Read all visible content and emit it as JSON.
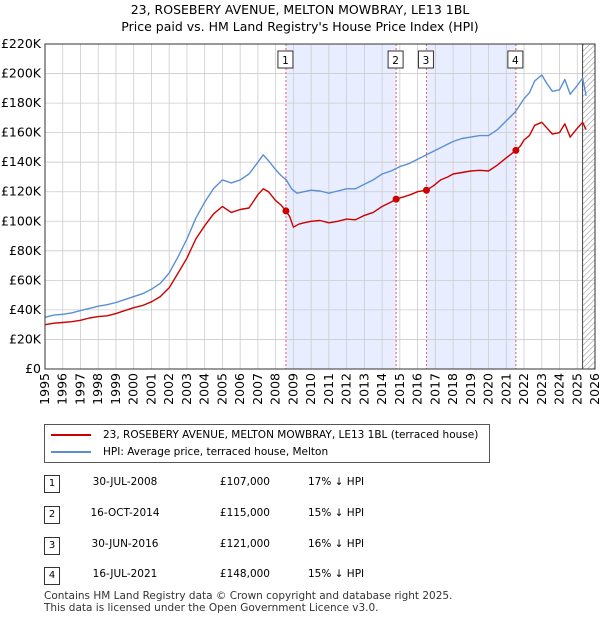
{
  "title_line1": "23, ROSEBERY AVENUE, MELTON MOWBRAY, LE13 1BL",
  "title_line2": "Price paid vs. HM Land Registry's House Price Index (HPI)",
  "colors": {
    "property": "#cc0000",
    "hpi": "#5b8fd4",
    "shade": "#e8eeff",
    "marker_line": "#e06060",
    "grid": "#cccccc",
    "future_hatch": "#999999"
  },
  "chart_data": {
    "type": "line",
    "xlim": [
      1995,
      2026
    ],
    "ylim": [
      0,
      220000
    ],
    "x_ticks": [
      1995,
      1996,
      1997,
      1998,
      1999,
      2000,
      2001,
      2002,
      2003,
      2004,
      2005,
      2006,
      2007,
      2008,
      2009,
      2010,
      2011,
      2012,
      2013,
      2014,
      2015,
      2016,
      2017,
      2018,
      2019,
      2020,
      2021,
      2022,
      2023,
      2024,
      2025,
      2026
    ],
    "y_ticks": [
      {
        "value": 0,
        "label": "£0"
      },
      {
        "value": 20000,
        "label": "£20K"
      },
      {
        "value": 40000,
        "label": "£40K"
      },
      {
        "value": 60000,
        "label": "£60K"
      },
      {
        "value": 80000,
        "label": "£80K"
      },
      {
        "value": 100000,
        "label": "£100K"
      },
      {
        "value": 120000,
        "label": "£120K"
      },
      {
        "value": 140000,
        "label": "£140K"
      },
      {
        "value": 160000,
        "label": "£160K"
      },
      {
        "value": 180000,
        "label": "£180K"
      },
      {
        "value": 200000,
        "label": "£200K"
      },
      {
        "value": 220000,
        "label": "£220K"
      }
    ],
    "future_from": 2025.3,
    "shaded_ranges": [
      [
        2008.58,
        2014.79
      ],
      [
        2016.5,
        2021.54
      ]
    ],
    "series": [
      {
        "name": "23, ROSEBERY AVENUE, MELTON MOWBRAY, LE13 1BL (terraced house)",
        "color": "#cc0000",
        "x": [
          1995.0,
          1995.5,
          1996.0,
          1996.5,
          1997.0,
          1997.5,
          1998.0,
          1998.5,
          1999.0,
          1999.5,
          2000.0,
          2000.5,
          2001.0,
          2001.5,
          2002.0,
          2002.5,
          2003.0,
          2003.5,
          2004.0,
          2004.5,
          2005.0,
          2005.5,
          2006.0,
          2006.5,
          2007.0,
          2007.3,
          2007.6,
          2008.0,
          2008.3,
          2008.58,
          2008.8,
          2009.0,
          2009.3,
          2009.6,
          2010.0,
          2010.5,
          2011.0,
          2011.5,
          2012.0,
          2012.5,
          2013.0,
          2013.5,
          2014.0,
          2014.5,
          2014.79,
          2015.2,
          2015.6,
          2016.0,
          2016.5,
          2016.9,
          2017.3,
          2017.7,
          2018.0,
          2018.5,
          2019.0,
          2019.5,
          2020.0,
          2020.5,
          2021.0,
          2021.54,
          2021.8,
          2022.0,
          2022.3,
          2022.6,
          2023.0,
          2023.3,
          2023.6,
          2024.0,
          2024.3,
          2024.6,
          2025.0,
          2025.3,
          2025.5
        ],
        "values": [
          30000,
          31000,
          31500,
          32000,
          33000,
          34500,
          35500,
          36000,
          37500,
          39500,
          41500,
          43000,
          45500,
          49000,
          55000,
          65000,
          75000,
          88000,
          97000,
          105000,
          110000,
          106000,
          108000,
          109000,
          118000,
          122000,
          120000,
          114000,
          111000,
          107000,
          103000,
          96000,
          98000,
          99000,
          100000,
          100500,
          99000,
          100000,
          101500,
          101000,
          104000,
          106000,
          110000,
          113000,
          115000,
          116500,
          118000,
          120000,
          121000,
          124000,
          128000,
          130000,
          132000,
          133000,
          134000,
          134500,
          134000,
          138000,
          143000,
          148000,
          151000,
          155000,
          158000,
          165000,
          167000,
          163000,
          159000,
          160000,
          166000,
          157000,
          163000,
          167000,
          162000
        ]
      },
      {
        "name": "HPI: Average price, terraced house, Melton",
        "color": "#5b8fd4",
        "x": [
          1995.0,
          1995.5,
          1996.0,
          1996.5,
          1997.0,
          1997.5,
          1998.0,
          1998.5,
          1999.0,
          1999.5,
          2000.0,
          2000.5,
          2001.0,
          2001.5,
          2002.0,
          2002.5,
          2003.0,
          2003.5,
          2004.0,
          2004.5,
          2005.0,
          2005.5,
          2006.0,
          2006.5,
          2007.0,
          2007.3,
          2007.6,
          2008.0,
          2008.3,
          2008.6,
          2008.9,
          2009.2,
          2009.6,
          2010.0,
          2010.5,
          2011.0,
          2011.5,
          2012.0,
          2012.5,
          2013.0,
          2013.5,
          2014.0,
          2014.5,
          2015.0,
          2015.5,
          2016.0,
          2016.5,
          2017.0,
          2017.5,
          2018.0,
          2018.5,
          2019.0,
          2019.5,
          2020.0,
          2020.5,
          2021.0,
          2021.5,
          2022.0,
          2022.3,
          2022.6,
          2023.0,
          2023.3,
          2023.6,
          2024.0,
          2024.3,
          2024.6,
          2025.0,
          2025.3,
          2025.5
        ],
        "values": [
          35000,
          36500,
          37000,
          38000,
          39500,
          41000,
          42500,
          43500,
          45000,
          47000,
          49000,
          51000,
          54000,
          58000,
          65000,
          76000,
          88000,
          102000,
          113000,
          122000,
          128000,
          126000,
          128000,
          132000,
          140000,
          145000,
          141000,
          135000,
          131000,
          128000,
          122000,
          119000,
          120000,
          121000,
          120500,
          119000,
          120500,
          122000,
          122000,
          125000,
          128000,
          132000,
          134000,
          137000,
          139000,
          142000,
          145000,
          148000,
          151000,
          154000,
          156000,
          157000,
          158000,
          158000,
          162000,
          168000,
          174000,
          183000,
          187000,
          195000,
          199000,
          193000,
          188000,
          189000,
          196000,
          186000,
          192000,
          197000,
          185000
        ]
      }
    ],
    "sales": [
      {
        "n": "1",
        "x": 2008.58,
        "price": 107000
      },
      {
        "n": "2",
        "x": 2014.79,
        "price": 115000
      },
      {
        "n": "3",
        "x": 2016.5,
        "price": 121000
      },
      {
        "n": "4",
        "x": 2021.54,
        "price": 148000
      }
    ]
  },
  "legend": {
    "property_label": "23, ROSEBERY AVENUE, MELTON MOWBRAY, LE13 1BL (terraced house)",
    "hpi_label": "HPI: Average price, terraced house, Melton"
  },
  "sales_table": [
    {
      "n": "1",
      "date": "30-JUL-2008",
      "price": "£107,000",
      "hpi": "17% ↓ HPI"
    },
    {
      "n": "2",
      "date": "16-OCT-2014",
      "price": "£115,000",
      "hpi": "15% ↓ HPI"
    },
    {
      "n": "3",
      "date": "30-JUN-2016",
      "price": "£121,000",
      "hpi": "16% ↓ HPI"
    },
    {
      "n": "4",
      "date": "16-JUL-2021",
      "price": "£148,000",
      "hpi": "15% ↓ HPI"
    }
  ],
  "footer_line1": "Contains HM Land Registry data © Crown copyright and database right 2025.",
  "footer_line2": "This data is licensed under the Open Government Licence v3.0."
}
